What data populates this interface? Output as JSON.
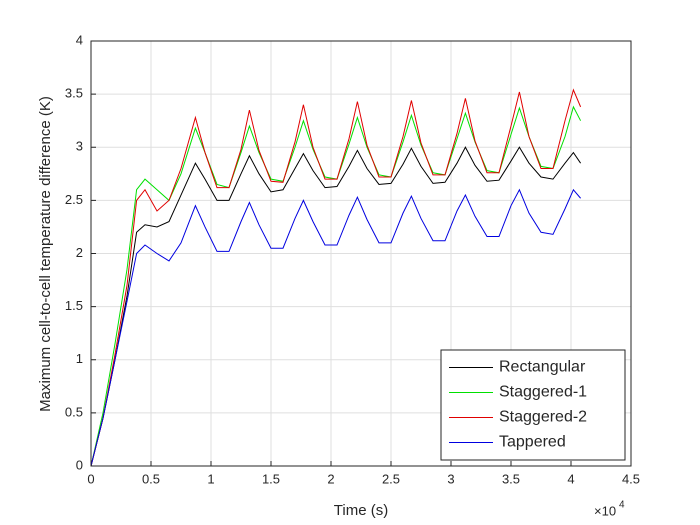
{
  "chart_data": {
    "type": "line",
    "x_label": "Time (s)",
    "y_label": "Maximum cell-to-cell temperature difference (K)",
    "x_multiplier": "×10",
    "x_multiplier_power": "4",
    "xlim": [
      0,
      4.5
    ],
    "ylim": [
      0,
      4
    ],
    "xticks": [
      0,
      0.5,
      1,
      1.5,
      2,
      2.5,
      3,
      3.5,
      4,
      4.5
    ],
    "yticks": [
      0,
      0.5,
      1,
      1.5,
      2,
      2.5,
      3,
      3.5,
      4
    ],
    "grid": true,
    "legend_position": "lower right",
    "x": [
      0,
      0.1,
      0.2,
      0.3,
      0.38,
      0.45,
      0.55,
      0.65,
      0.75,
      0.87,
      0.95,
      1.05,
      1.15,
      1.25,
      1.32,
      1.4,
      1.5,
      1.6,
      1.7,
      1.77,
      1.85,
      1.95,
      2.05,
      2.15,
      2.22,
      2.3,
      2.4,
      2.5,
      2.6,
      2.67,
      2.75,
      2.85,
      2.95,
      3.05,
      3.12,
      3.2,
      3.3,
      3.4,
      3.5,
      3.57,
      3.65,
      3.75,
      3.85,
      3.95,
      4.02,
      4.08
    ],
    "series": [
      {
        "name": "Rectangular",
        "color": "#000000",
        "values": [
          0,
          0.45,
          1.0,
          1.6,
          2.2,
          2.27,
          2.25,
          2.3,
          2.55,
          2.85,
          2.7,
          2.5,
          2.5,
          2.75,
          2.92,
          2.75,
          2.58,
          2.6,
          2.8,
          2.94,
          2.78,
          2.62,
          2.63,
          2.82,
          2.97,
          2.8,
          2.65,
          2.66,
          2.84,
          2.99,
          2.82,
          2.66,
          2.67,
          2.85,
          3.0,
          2.83,
          2.68,
          2.69,
          2.87,
          3.0,
          2.85,
          2.72,
          2.7,
          2.85,
          2.95,
          2.85
        ]
      },
      {
        "name": "Staggered-1",
        "color": "#00e000",
        "values": [
          0,
          0.5,
          1.15,
          1.85,
          2.6,
          2.7,
          2.6,
          2.5,
          2.75,
          3.18,
          2.95,
          2.65,
          2.62,
          2.95,
          3.2,
          2.95,
          2.7,
          2.68,
          3.0,
          3.25,
          2.98,
          2.72,
          2.7,
          3.03,
          3.28,
          3.0,
          2.74,
          2.72,
          3.05,
          3.3,
          3.02,
          2.76,
          2.74,
          3.08,
          3.32,
          3.05,
          2.78,
          2.76,
          3.12,
          3.37,
          3.1,
          2.82,
          2.8,
          3.1,
          3.38,
          3.25
        ]
      },
      {
        "name": "Staggered-2",
        "color": "#e00000",
        "values": [
          0,
          0.45,
          1.05,
          1.7,
          2.5,
          2.6,
          2.4,
          2.5,
          2.8,
          3.28,
          2.95,
          2.62,
          2.62,
          2.98,
          3.35,
          2.97,
          2.68,
          2.67,
          3.05,
          3.4,
          3.0,
          2.7,
          2.7,
          3.08,
          3.43,
          3.02,
          2.72,
          2.72,
          3.1,
          3.44,
          3.04,
          2.74,
          2.74,
          3.13,
          3.46,
          3.06,
          2.76,
          2.76,
          3.2,
          3.52,
          3.1,
          2.8,
          2.8,
          3.25,
          3.54,
          3.38
        ]
      },
      {
        "name": "Tappered",
        "color": "#0000e0",
        "values": [
          0,
          0.45,
          1.0,
          1.55,
          2.0,
          2.08,
          2.0,
          1.93,
          2.1,
          2.45,
          2.25,
          2.02,
          2.02,
          2.3,
          2.48,
          2.27,
          2.05,
          2.05,
          2.33,
          2.5,
          2.3,
          2.08,
          2.08,
          2.36,
          2.53,
          2.32,
          2.1,
          2.1,
          2.38,
          2.54,
          2.33,
          2.12,
          2.12,
          2.4,
          2.55,
          2.35,
          2.16,
          2.16,
          2.45,
          2.6,
          2.38,
          2.2,
          2.18,
          2.42,
          2.6,
          2.52
        ]
      }
    ]
  }
}
